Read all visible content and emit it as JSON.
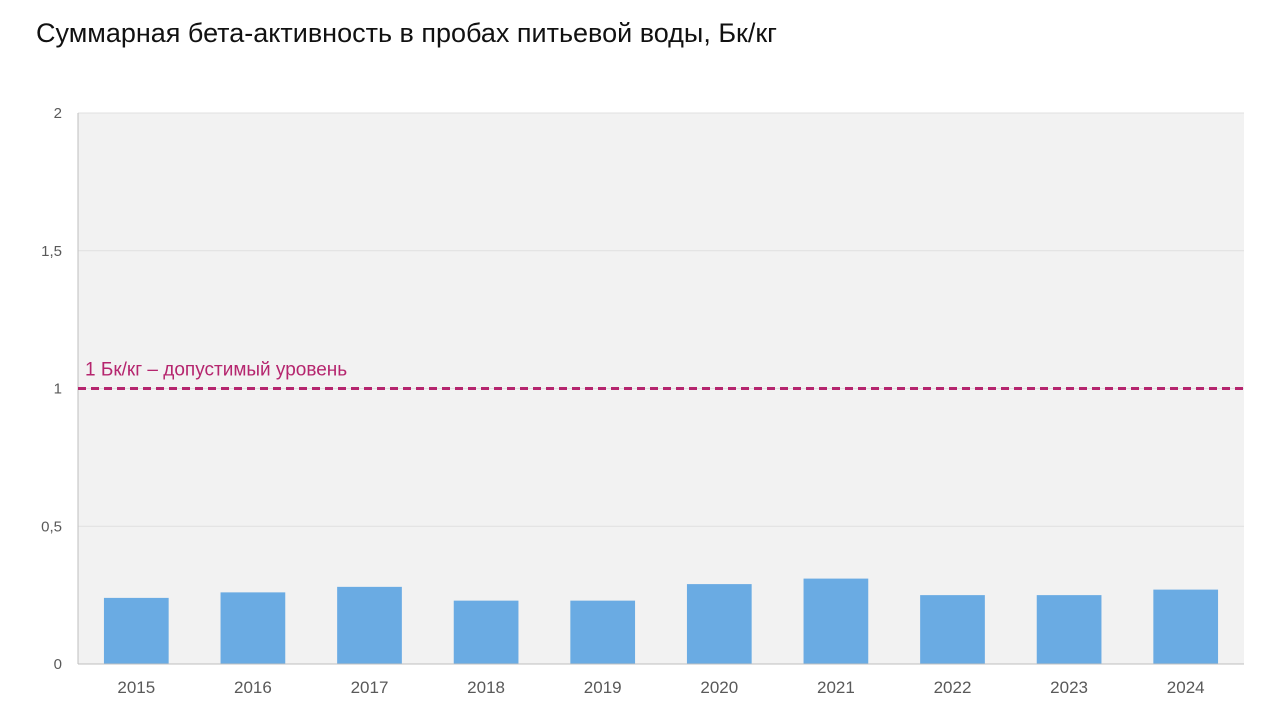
{
  "chart_data": {
    "type": "bar",
    "title": "Суммарная бета-активность в пробах питьевой воды, Бк/кг",
    "xlabel": "",
    "ylabel": "",
    "categories": [
      "2015",
      "2016",
      "2017",
      "2018",
      "2019",
      "2020",
      "2021",
      "2022",
      "2023",
      "2024"
    ],
    "values": [
      0.24,
      0.26,
      0.28,
      0.23,
      0.23,
      0.29,
      0.31,
      0.25,
      0.25,
      0.27
    ],
    "ylim": [
      0,
      2
    ],
    "yticks": [
      0,
      0.5,
      1,
      1.5,
      2
    ],
    "ytick_labels": [
      "0",
      "0,5",
      "1",
      "1,5",
      "2"
    ],
    "grid": true,
    "legend": "none",
    "threshold": {
      "value": 1,
      "label": "1 Бк/кг – допустимый уровень",
      "color": "#b5256e",
      "style": "dashed"
    },
    "colors": {
      "bar": "#6aabe3",
      "plot_background": "#f2f2f2",
      "gridline": "#e0e0e0",
      "axis": "#bfbfbf",
      "tick_text": "#595959"
    }
  }
}
